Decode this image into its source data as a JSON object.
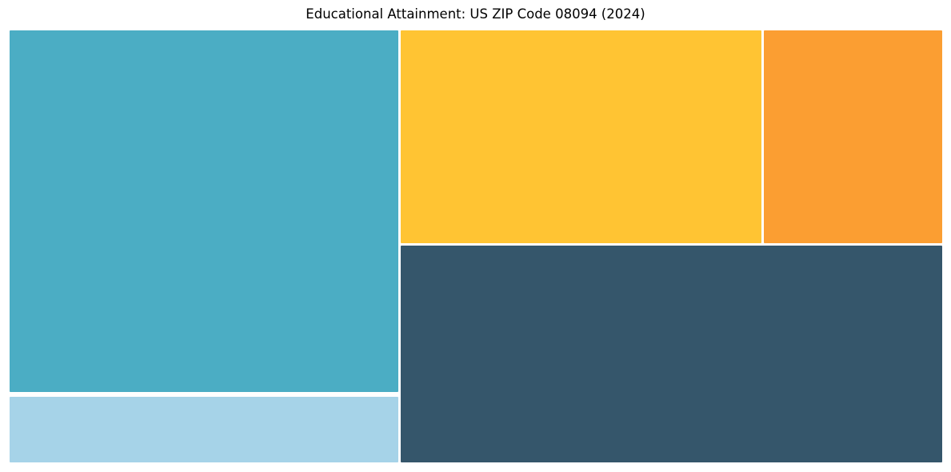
{
  "page": {
    "title": "Educational Attainment: US ZIP Code 08094 (2024)"
  },
  "chart_data": {
    "type": "treemap",
    "title": "Educational Attainment: US ZIP Code 08094 (2024)",
    "background": "#FFFFFF",
    "legend": "none",
    "cells": [
      {
        "name": "teal-cell",
        "color": "#4BADC4",
        "area_share_pct": 35.3
      },
      {
        "name": "light-blue-cell",
        "color": "#A6D3E8",
        "area_share_pct": 6.4
      },
      {
        "name": "yellow-cell",
        "color": "#FFC433",
        "area_share_pct": 19.3
      },
      {
        "name": "orange-cell",
        "color": "#FB9E32",
        "area_share_pct": 9.7
      },
      {
        "name": "dark-slate-cell",
        "color": "#35566B",
        "area_share_pct": 29.4
      }
    ]
  }
}
